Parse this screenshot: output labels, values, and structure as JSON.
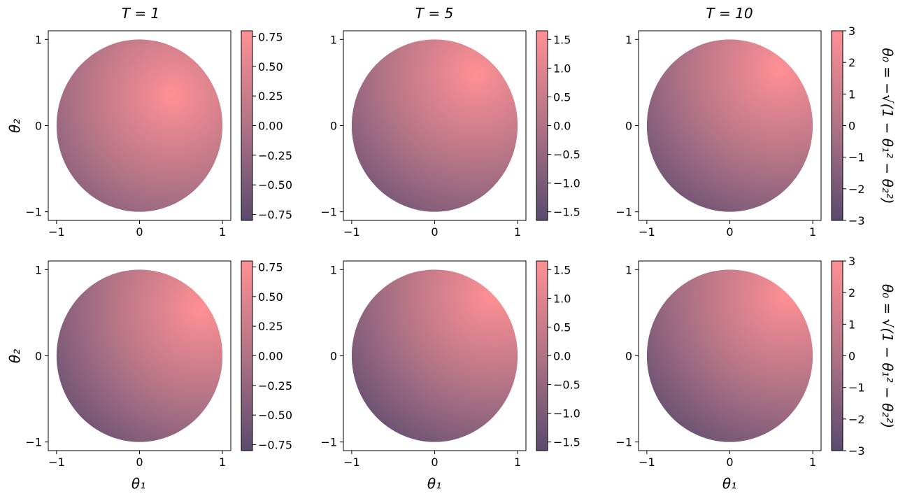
{
  "colors": {
    "low": "#5a4a6e",
    "mid": "#b07386",
    "high": "#ff9094"
  },
  "chart_data": {
    "type": "heatmap",
    "layout": "2x3 grid",
    "column_titles": [
      "T = 1",
      "T = 5",
      "T = 10"
    ],
    "row_labels": [
      "θ₀ = −√(1 − θ₁² − θ₂²)",
      "θ₀ = √(1 − θ₁² − θ₂²)"
    ],
    "xlabel": "θ₁",
    "ylabel": "θ₂",
    "x_ticks": [
      "−1",
      "0",
      "1"
    ],
    "y_ticks": [
      "1",
      "0",
      "−1"
    ],
    "xlim": [
      -1.1,
      1.1
    ],
    "ylim": [
      -1.1,
      1.1
    ],
    "domain": "unit disk",
    "panels": [
      {
        "row": 0,
        "col": 0,
        "vmin": -0.8,
        "vmax": 0.8,
        "cbar_ticks": [
          "0.75",
          "0.50",
          "0.25",
          "0.00",
          "−0.25",
          "−0.50",
          "−0.75"
        ],
        "max_at": [
          0.4,
          0.35
        ]
      },
      {
        "row": 0,
        "col": 1,
        "vmin": -1.65,
        "vmax": 1.65,
        "cbar_ticks": [
          "1.5",
          "1.0",
          "0.5",
          "0.0",
          "−0.5",
          "−1.0",
          "−1.5"
        ],
        "max_at": [
          0.5,
          0.6
        ]
      },
      {
        "row": 0,
        "col": 2,
        "vmin": -3,
        "vmax": 3,
        "cbar_ticks": [
          "3",
          "2",
          "1",
          "0",
          "−1",
          "−2",
          "−3"
        ],
        "max_at": [
          0.6,
          0.65
        ]
      },
      {
        "row": 1,
        "col": 0,
        "vmin": -0.8,
        "vmax": 0.8,
        "cbar_ticks": [
          "0.75",
          "0.50",
          "0.25",
          "0.00",
          "−0.25",
          "−0.50",
          "−0.75"
        ],
        "max_at": [
          0.75,
          0.55
        ]
      },
      {
        "row": 1,
        "col": 1,
        "vmin": -1.65,
        "vmax": 1.65,
        "cbar_ticks": [
          "1.5",
          "1.0",
          "0.5",
          "0.0",
          "−0.5",
          "−1.0",
          "−1.5"
        ],
        "max_at": [
          0.7,
          0.7
        ]
      },
      {
        "row": 1,
        "col": 2,
        "vmin": -3,
        "vmax": 3,
        "cbar_ticks": [
          "3",
          "2",
          "1",
          "0",
          "−1",
          "−2",
          "−3"
        ],
        "max_at": [
          0.7,
          0.7
        ]
      }
    ]
  }
}
